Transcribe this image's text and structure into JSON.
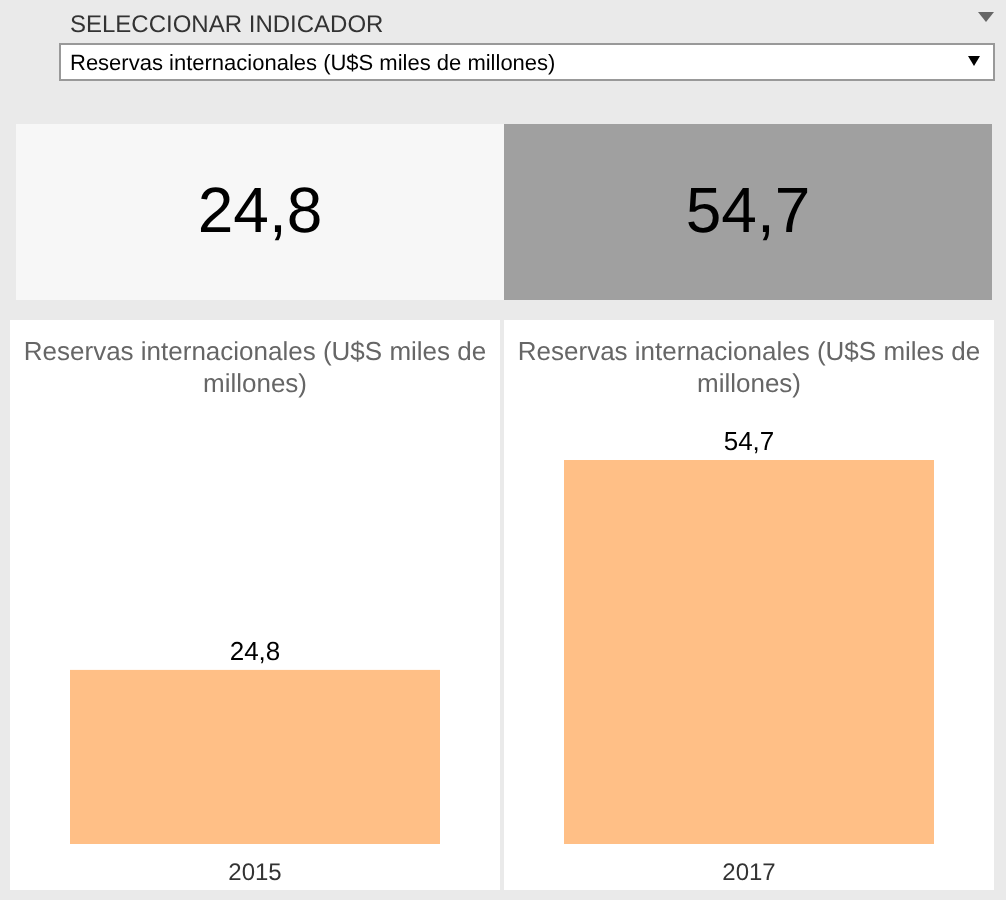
{
  "chart_data": [
    {
      "type": "other",
      "title": "SELECCIONAR INDICADOR",
      "annotations": [
        "Reservas internacionales (U$S miles de millones)"
      ],
      "values": [
        24.8,
        54.7
      ],
      "value_labels": [
        "24,8",
        "54,7"
      ],
      "colors": [
        "#f7f7f7",
        "#a0a0a0"
      ]
    },
    {
      "type": "bar",
      "title": "Reservas internacionales (U$S miles de millones)",
      "annotations": [
        "Reservas internacionales (U$S miles de millones)"
      ],
      "categories": [
        "2015",
        "2017"
      ],
      "values": [
        24.8,
        54.7
      ],
      "value_labels": [
        "24,8",
        "54,7"
      ],
      "color": "#ffbf86",
      "tick_labels": "x"
    }
  ]
}
